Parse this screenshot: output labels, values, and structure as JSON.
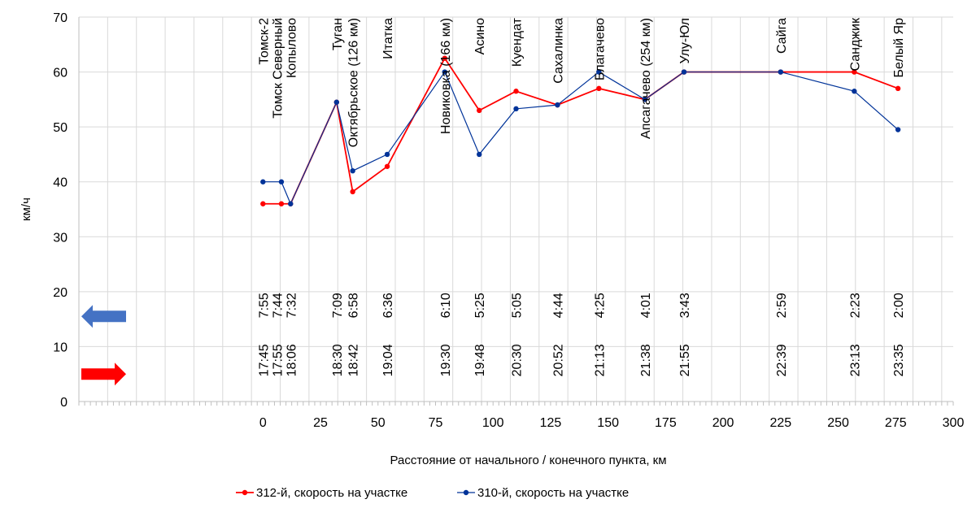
{
  "chart_data": {
    "type": "line",
    "xlabel": "Расстояние от начального / конечного пункта, км",
    "ylabel": "км/ч",
    "xlim": [
      -80,
      300
    ],
    "ylim": [
      0,
      70
    ],
    "xticks": [
      0,
      25,
      50,
      75,
      100,
      125,
      150,
      175,
      200,
      225,
      250,
      275,
      300
    ],
    "yticks": [
      0,
      10,
      20,
      30,
      40,
      50,
      60,
      70
    ],
    "grid": true,
    "legend_position": "bottom",
    "series": [
      {
        "name": "312-й, скорость на участке",
        "color": "#ff0000",
        "x": [
          0,
          8,
          12,
          32,
          39,
          54,
          79,
          94,
          110,
          128,
          146,
          166,
          183,
          225,
          257,
          276
        ],
        "y": [
          36,
          36,
          36,
          54.5,
          38.2,
          42.8,
          62.5,
          53,
          56.5,
          54,
          57,
          55,
          60,
          60,
          60,
          57
        ]
      },
      {
        "name": "310-й, скорость на участке",
        "color": "#003399",
        "x": [
          0,
          8,
          12,
          32,
          39,
          54,
          79,
          94,
          110,
          128,
          146,
          166,
          183,
          225,
          257,
          276
        ],
        "y": [
          40,
          40,
          36,
          54.5,
          42,
          45,
          60,
          45,
          53.3,
          54,
          60,
          55,
          60,
          60,
          56.5,
          49.5
        ]
      }
    ],
    "stations": [
      {
        "name": "Томск-2",
        "x": 0,
        "dep_times": "7:55",
        "arr_times": "17:45"
      },
      {
        "name": "Томск Северный",
        "x": 6,
        "dep_times": "7:44",
        "arr_times": "17:55"
      },
      {
        "name": "Копылово",
        "x": 12,
        "dep_times": "7:32",
        "arr_times": "18:06"
      },
      {
        "name": "Туган",
        "x": 32,
        "dep_times": "7:09",
        "arr_times": "18:30"
      },
      {
        "name": "Октябрьское (126 км)",
        "x": 39,
        "dep_times": "6:58",
        "arr_times": "18:42"
      },
      {
        "name": "Итатка",
        "x": 54,
        "dep_times": "6:36",
        "arr_times": "19:04"
      },
      {
        "name": "Новиковка (166 км)",
        "x": 79,
        "dep_times": "6:10",
        "arr_times": "19:30"
      },
      {
        "name": "Асино",
        "x": 94,
        "dep_times": "5:25",
        "arr_times": "19:48"
      },
      {
        "name": "Куендат",
        "x": 110,
        "dep_times": "5:05",
        "arr_times": "20:30"
      },
      {
        "name": "Сахалинка",
        "x": 128,
        "dep_times": "4:44",
        "arr_times": "20:52"
      },
      {
        "name": "Благачево",
        "x": 146,
        "dep_times": "4:25",
        "arr_times": "21:13"
      },
      {
        "name": "Апсагачево (254 км)",
        "x": 166,
        "dep_times": "4:01",
        "arr_times": "21:38"
      },
      {
        "name": "Улу-Юл",
        "x": 183,
        "dep_times": "3:43",
        "arr_times": "21:55"
      },
      {
        "name": "Сайга",
        "x": 225,
        "dep_times": "2:59",
        "arr_times": "22:39"
      },
      {
        "name": "Санджик",
        "x": 257,
        "dep_times": "2:23",
        "arr_times": "23:13"
      },
      {
        "name": "Белый Яр",
        "x": 276,
        "dep_times": "2:00",
        "arr_times": "23:35"
      }
    ],
    "direction_arrows": [
      {
        "direction": "left",
        "color": "#4472c4",
        "y_value": 15.5
      },
      {
        "direction": "right",
        "color": "#ff0000",
        "y_value": 5
      }
    ],
    "time_rows": {
      "dep_y_value": 17.5,
      "arr_y_value": 7.5
    }
  }
}
